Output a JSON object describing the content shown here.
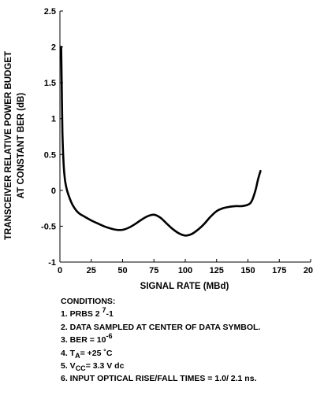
{
  "chart_data": {
    "type": "line",
    "title": "",
    "xlabel": "SIGNAL RATE (MBd)",
    "ylabel_line1": "TRANSCEIVER RELATIVE POWER BUDGET",
    "ylabel_line2": "AT CONSTANT BER (dB)",
    "xlim": [
      0,
      200
    ],
    "ylim": [
      -1,
      2.5
    ],
    "x_ticks": [
      "0",
      "25",
      "50",
      "75",
      "100",
      "125",
      "150",
      "175",
      "200"
    ],
    "y_ticks": [
      "2.5",
      "2",
      "1.5",
      "1",
      "0.5",
      "0",
      "-0.5",
      "-1"
    ],
    "grid": false,
    "series": [
      {
        "x": [
          1,
          1.5,
          2,
          3,
          4,
          5,
          6,
          8,
          10,
          13,
          16,
          20,
          25,
          30,
          35,
          40,
          45,
          50,
          55,
          60,
          65,
          70,
          75,
          80,
          85,
          90,
          95,
          100,
          105,
          110,
          115,
          120,
          125,
          130,
          135,
          140,
          145,
          150,
          153,
          156,
          158,
          160
        ],
        "y": [
          2.0,
          1.4,
          0.8,
          0.35,
          0.15,
          0.05,
          -0.02,
          -0.12,
          -0.2,
          -0.28,
          -0.33,
          -0.37,
          -0.42,
          -0.46,
          -0.5,
          -0.53,
          -0.55,
          -0.55,
          -0.52,
          -0.47,
          -0.41,
          -0.36,
          -0.34,
          -0.38,
          -0.46,
          -0.54,
          -0.6,
          -0.63,
          -0.61,
          -0.55,
          -0.47,
          -0.37,
          -0.29,
          -0.25,
          -0.23,
          -0.22,
          -0.22,
          -0.2,
          -0.15,
          0.0,
          0.15,
          0.27
        ]
      }
    ]
  },
  "conditions": {
    "heading": "CONDITIONS:",
    "c1_text": "1. PRBS 2",
    "c1_sup": "7",
    "c1_suffix": "-1",
    "c2_text": "2. DATA SAMPLED AT CENTER OF DATA SYMBOL.",
    "c3_text": "3. BER = 10",
    "c3_sup": "-6",
    "c4_prefix": "4. T",
    "c4_sub": "A",
    "c4_suffix": "= +25 ˚C",
    "c5_prefix": "5. V",
    "c5_sub": "CC",
    "c5_suffix": "= 3.3 V dc",
    "c6_text": "6. INPUT OPTICAL RISE/FALL TIMES = 1.0/ 2.1 ns."
  }
}
